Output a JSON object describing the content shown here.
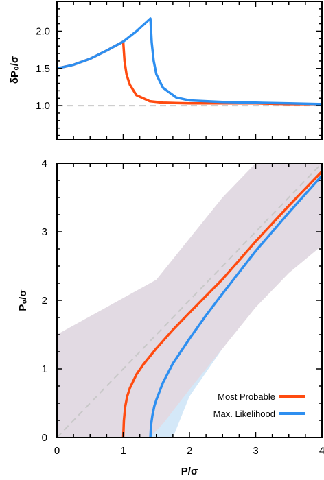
{
  "chart_data": [
    {
      "type": "line",
      "panel": "top",
      "ylabel": "δP₀/σ",
      "xlim": [
        0,
        4
      ],
      "ylim": [
        0.55,
        2.4
      ],
      "xticks": [
        "0",
        "1",
        "2",
        "3",
        "4"
      ],
      "yticks": [
        "1.0",
        "1.5",
        "2.0"
      ],
      "ytick_values": [
        1.0,
        1.5,
        2.0
      ],
      "reference_line": {
        "y": 1.0,
        "style": "dashed",
        "color": "#c8c8c8"
      },
      "series": [
        {
          "color": "#ff4b10",
          "x": [
            0,
            0.25,
            0.5,
            0.75,
            1.0,
            1.02,
            1.05,
            1.1,
            1.2,
            1.4,
            1.6,
            2.0,
            2.5,
            3.0,
            3.5,
            4.0
          ],
          "y": [
            1.5,
            1.55,
            1.63,
            1.74,
            1.86,
            1.6,
            1.42,
            1.28,
            1.14,
            1.06,
            1.04,
            1.03,
            1.03,
            1.03,
            1.02,
            1.02
          ]
        },
        {
          "color": "#2e8ff0",
          "x": [
            0,
            0.25,
            0.5,
            0.75,
            1.0,
            1.2,
            1.41,
            1.43,
            1.46,
            1.5,
            1.6,
            1.8,
            2.0,
            2.5,
            3.0,
            3.5,
            4.0
          ],
          "y": [
            1.5,
            1.55,
            1.63,
            1.74,
            1.86,
            2.0,
            2.17,
            1.85,
            1.6,
            1.42,
            1.24,
            1.11,
            1.07,
            1.05,
            1.04,
            1.03,
            1.02
          ]
        }
      ]
    },
    {
      "type": "line",
      "panel": "bottom",
      "xlabel": "P/σ",
      "ylabel": "P₀/σ",
      "xlim": [
        0,
        4
      ],
      "ylim": [
        0,
        4
      ],
      "xticks": [
        "0",
        "1",
        "2",
        "3",
        "4"
      ],
      "yticks": [
        "0",
        "1",
        "2",
        "3",
        "4"
      ],
      "tick_values": [
        0,
        1,
        2,
        3,
        4
      ],
      "legend_position": "bottom-right",
      "reference_line": {
        "x": [
          0,
          4
        ],
        "y": [
          0,
          4
        ],
        "style": "dashed",
        "color": "#c8c8c8"
      },
      "bands": [
        {
          "color": "#ffd2c0",
          "x": [
            0,
            1.5,
            2.0,
            2.5,
            3.0,
            3.5,
            4.0,
            4.0,
            3.5,
            3.0,
            2.5,
            2.0,
            1.6,
            1.4,
            1.0,
            0.6,
            0
          ],
          "y": [
            1.5,
            2.3,
            2.9,
            3.5,
            4.0,
            4.0,
            4.0,
            2.8,
            2.4,
            1.9,
            1.3,
            0.7,
            0.2,
            0,
            0,
            0,
            0
          ]
        },
        {
          "color": "#d4e8f8",
          "x": [
            0,
            1.5,
            2.0,
            2.5,
            3.0,
            3.5,
            4.0,
            4.0,
            3.5,
            3.0,
            2.5,
            2.0,
            1.75,
            1.4,
            1.0,
            0.6,
            0
          ],
          "y": [
            1.5,
            2.3,
            2.9,
            3.5,
            4.0,
            4.0,
            4.0,
            2.8,
            2.4,
            1.9,
            1.3,
            0.6,
            0,
            0,
            0,
            0,
            0
          ]
        },
        {
          "color": "#e3d8e0",
          "x": [
            0,
            1.5,
            2.0,
            2.5,
            3.0,
            3.5,
            4.0,
            4.0,
            3.5,
            3.0,
            2.5,
            2.0,
            1.6,
            1.4,
            1.0,
            0.6,
            0
          ],
          "y": [
            1.5,
            2.3,
            2.9,
            3.5,
            4.0,
            4.0,
            4.0,
            2.8,
            2.4,
            1.9,
            1.3,
            0.7,
            0.2,
            0,
            0,
            0,
            0
          ]
        }
      ],
      "series": [
        {
          "name": "Most Probable",
          "color": "#ff4b10",
          "x": [
            1.0,
            1.01,
            1.03,
            1.06,
            1.1,
            1.2,
            1.3,
            1.5,
            1.75,
            2.0,
            2.5,
            3.0,
            3.5,
            4.0
          ],
          "y": [
            0,
            0.25,
            0.45,
            0.6,
            0.72,
            0.92,
            1.06,
            1.3,
            1.57,
            1.82,
            2.31,
            2.86,
            3.38,
            3.88
          ]
        },
        {
          "name": "Max. Likelihood",
          "color": "#2e8ff0",
          "x": [
            1.41,
            1.42,
            1.44,
            1.47,
            1.5,
            1.6,
            1.75,
            2.0,
            2.25,
            2.5,
            3.0,
            3.5,
            4.0
          ],
          "y": [
            0,
            0.18,
            0.32,
            0.46,
            0.55,
            0.8,
            1.08,
            1.44,
            1.78,
            2.1,
            2.72,
            3.28,
            3.82
          ]
        }
      ]
    }
  ]
}
